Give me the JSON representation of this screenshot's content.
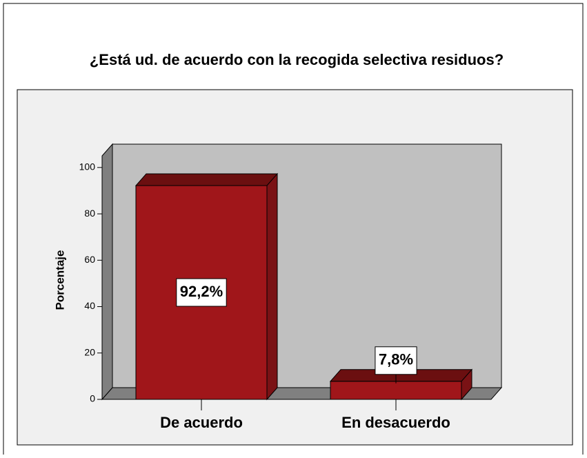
{
  "chart_data": {
    "type": "bar3d",
    "title": "¿Está ud. de acuerdo con la recogida selectiva residuos?",
    "y_label": "Porcentaje",
    "categories": [
      "De acuerdo",
      "En desacuerdo"
    ],
    "values": [
      92.2,
      7.8
    ],
    "value_labels": [
      "92,2%",
      "7,8%"
    ],
    "color": "#a0161a",
    "ylim": [
      0,
      105
    ],
    "yticks": [
      0,
      20,
      40,
      60,
      80,
      100
    ]
  }
}
